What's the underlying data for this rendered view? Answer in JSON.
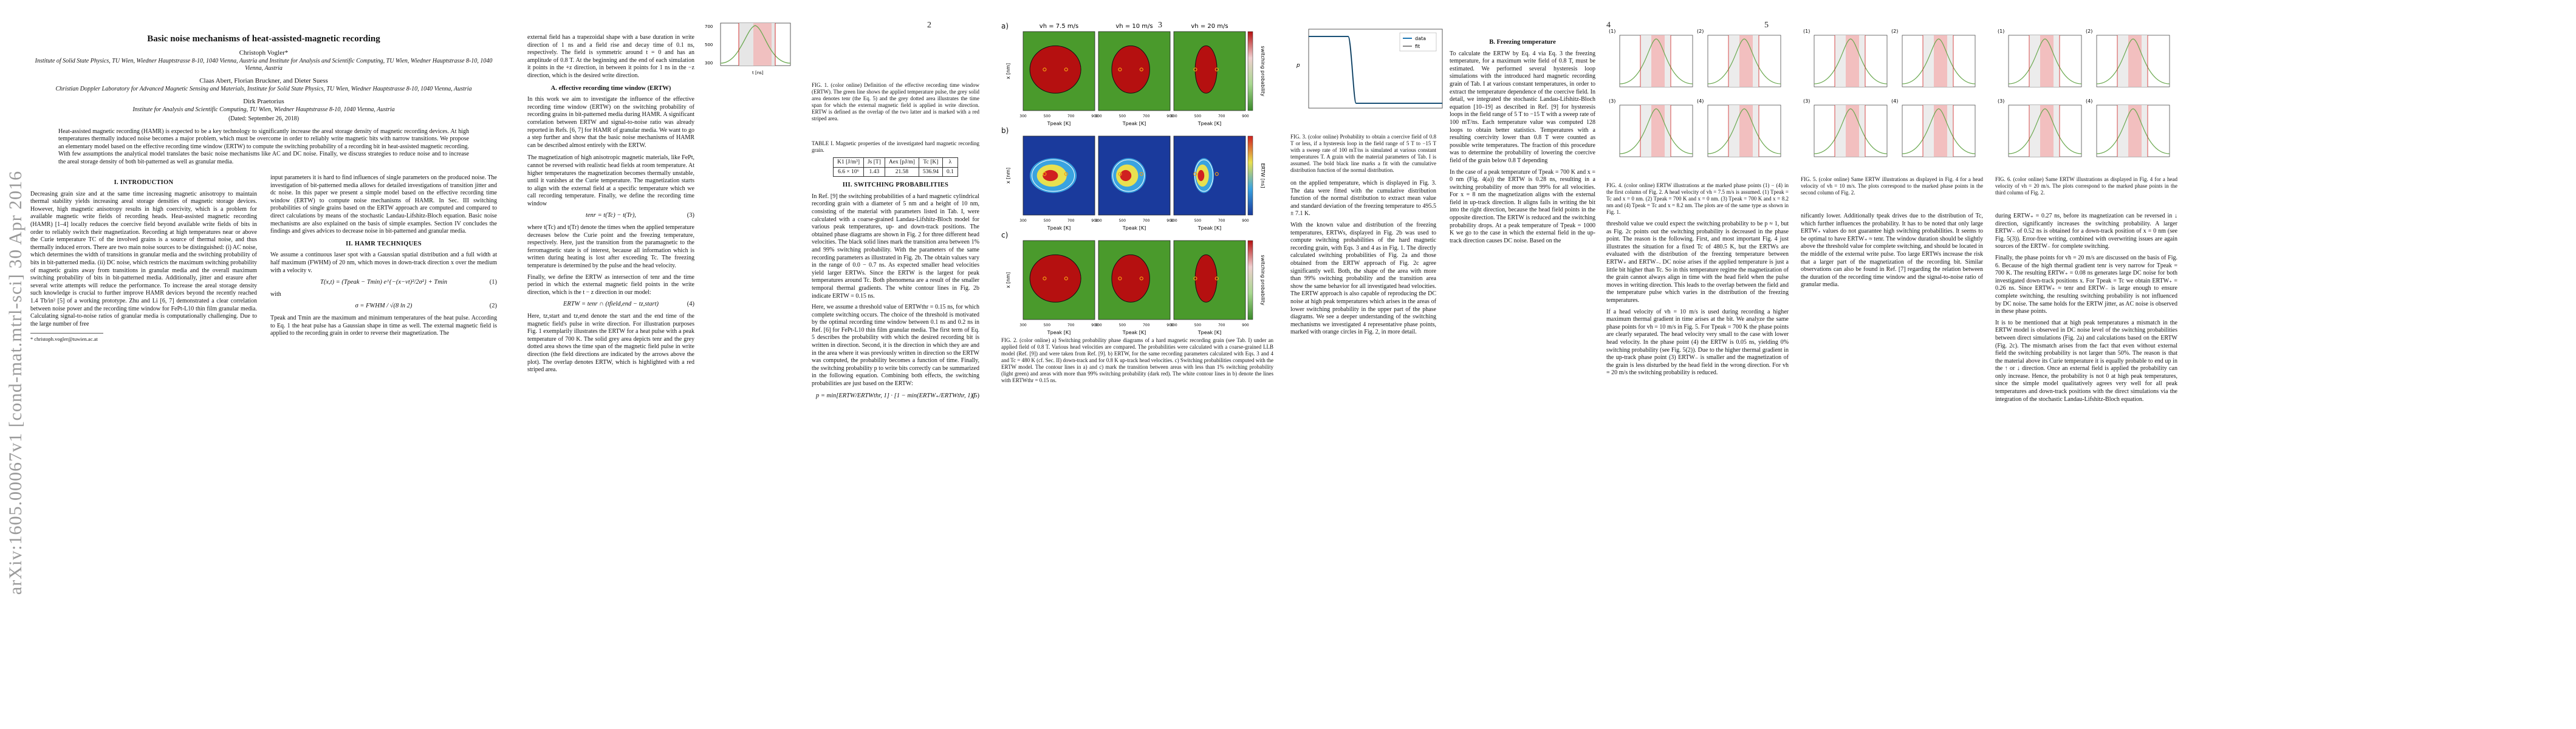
{
  "arxiv_stamp": "arXiv:1605.00067v1  [cond-mat.mtrl-sci]  30 Apr 2016",
  "page_numbers": [
    "2",
    "3",
    "4",
    "5"
  ],
  "p1": {
    "title": "Basic noise mechanisms of heat-assisted-magnetic recording",
    "author1": "Christoph Vogler*",
    "affil1": "Institute of Solid State Physics, TU Wien, Wiedner Hauptstrasse 8-10, 1040 Vienna, Austria and Institute for Analysis and Scientific Computing, TU Wien, Wiedner Hauptstrasse 8-10, 1040 Vienna, Austria",
    "author2": "Claas Abert, Florian Bruckner, and Dieter Suess",
    "affil2": "Christian Doppler Laboratory for Advanced Magnetic Sensing and Materials, Institute for Solid State Physics, TU Wien, Wiedner Hauptstrasse 8-10, 1040 Vienna, Austria",
    "author3": "Dirk Praetorius",
    "affil3": "Institute for Analysis and Scientific Computing, TU Wien, Wiedner Hauptstrasse 8-10, 1040 Vienna, Austria",
    "date": "(Dated: September 26, 2018)",
    "abstract": "Heat-assisted magnetic recording (HAMR) is expected to be a key technology to significantly increase the areal storage density of magnetic recording devices. At high temperatures thermally induced noise becomes a major problem, which must be overcome in order to reliably write magnetic bits with narrow transitions. We propose an elementary model based on the effective recording time window (ERTW) to compute the switching probability of a recording bit in heat-assisted magnetic recording. With few assumptions the analytical model translates the basic noise mechanisms like AC and DC noise. Finally, we discuss strategies to reduce noise and to increase the areal storage density of both bit-patterned as well as granular media.",
    "sec1": "I.   INTRODUCTION",
    "intro": "Decreasing grain size and at the same time increasing magnetic anisotropy to maintain thermal stability yields increasing areal storage densities of magnetic storage devices. However, high magnetic anisotropy results in high coercivity, which is a problem for available magnetic write fields of recording heads. Heat-assisted magnetic recording (HAMR) [1–4] locally reduces the coercive field beyond available write fields of bits in order to reliably switch their magnetization. Recording at high temperatures near or above the Curie temperature TC of the involved grains is a source of thermal noise, and thus thermally induced errors. There are two main noise sources to be distinguished: (i) AC noise, which determines the width of transitions in granular media and the switching probability of bits in bit-patterned media. (ii) DC noise, which restricts the maximum switching probability of magnetic grains away from transitions in granular media and the overall maximum switching probability of bits in bit-patterned media. Additionally, jitter and erasure after several write attempts will reduce the performance. To increase the areal storage density such knowledge is crucial to further improve HAMR devices beyond the recently reached 1.4 Tb/in² [5] of a working prototype. Zhu and Li [6, 7] demonstrated a clear correlation between noise power and the recording time window for FePt-L10 thin film granular media. Calculating signal-to-noise ratios of granular media is computationally challenging. Due to the large number of free",
    "col2_a": "input parameters it is hard to find influences of single parameters on the produced noise. The investigation of bit-patterned media allows for detailed investigations of transition jitter and dc noise. In this paper we present a simple model based on the effective recording time window (ERTW) to compute noise mechanisms of HAMR. In Sec. III switching probabilities of single grains based on the ERTW approach are computed and compared to direct calculations by means of the stochastic Landau-Lifshitz-Bloch equation. Basic noise mechanisms are also explained on the basis of simple examples. Section IV concludes the findings and gives advices to decrease noise in bit-patterned and granular media.",
    "sec2": "II.   HAMR TECHNIQUES",
    "col2_b": "We assume a continuous laser spot with a Gaussian spatial distribution and a full width at half maximum (FWHM) of 20 nm, which moves in down-track direction x over the medium with a velocity v.",
    "eq1": "T(x,t) = (Tpeak − Tmin) e^{−(x−vt)²/2σ²} + Tmin",
    "eq1_num": "(1)",
    "with": "with",
    "eq2": "σ = FWHM / √(8 ln 2)",
    "eq2_num": "(2)",
    "col2_c": "Tpeak and Tmin are the maximum and minimum temperatures of the heat pulse. According to Eq. 1 the heat pulse has a Gaussian shape in time as well. The external magnetic field is applied to the recording grain in order to reverse their magnetization. The",
    "footnote": "* christoph.vogler@tuwien.ac.at"
  },
  "p2": {
    "col1_a": "external field has a trapezoidal shape with a base duration in write direction of 1 ns and a field rise and decay time of 0.1 ns, respectively. The field is symmetric around t = 0 and has an amplitude of 0.8 T. At the beginning and the end of each simulation it points in the +z direction, in between it points for 1 ns in the −z direction, which is the desired write direction.",
    "fig1_caption": "FIG. 1. (color online) Definition of the effective recording time window (ERTW). The green line shows the applied temperature pulse, the grey solid area denotes tenr (the Eq. 5) and the grey dotted area illustrates the time span for which the external magnetic field is applied in write direction. ERTW is defined as the overlap of the two latter and is marked with a red striped area.",
    "subsecA": "A.   effective recording time window (ERTW)",
    "col1_b": "In this work we aim to investigate the influence of the effective recording time window (ERTW) on the switching probability of recording grains in bit-patterned media during HAMR. A significant correlation between ERTW and signal-to-noise ratio was already reported in Refs. [6, 7] for HAMR of granular media. We want to go a step further and show that the basic noise mechanisms of HAMR can be described almost entirely with the ERTW.",
    "col1_c": "The magnetization of high anisotropic magnetic materials, like FePt, cannot be reversed with realistic head fields at room temperature. At higher temperatures the magnetization becomes thermally unstable, until it vanishes at the Curie temperature. The magnetization starts to align with the external field at a specific temperature which we call recording temperature. Finally, we define the recording time window",
    "eq3": "tenr = t(Tc) − t(Tr),",
    "eq3_num": "(3)",
    "col1_d": "where t(Tc) and t(Tr) denote the times when the applied temperature decreases below the Curie point and the freezing temperature, respectively. Here, just the transition from the paramagnetic to the ferromagnetic state is of interest, because all information which is written during heating is lost after exceeding Tc. The freezing temperature is determined by the pulse and the head velocity.",
    "col1_e": "Finally, we define the ERTW as intersection of tenr and the time period in which the external magnetic field points in the write direction, which is the t − z direction in our model:",
    "eq4": "ERTW = tenr ∩ (tfield,end − tz,start)",
    "eq4_num": "(4)",
    "col1_f": "Here, tz,start and tz,end denote the start and the end time of the magnetic field's pulse in write direction. For illustration purposes Fig. 1 exemplarily illustrates the ERTW for a heat pulse with a peak temperature of 700 K. The solid grey area depicts tenr and the grey dotted area shows the time span of the magnetic field pulse in write direction (the field directions are indicated by the arrows above the plot). The overlap denotes ERTW, which is highlighted with a red striped area.",
    "fig1_ylabel": "T [K]",
    "fig1_xlabel": "t [ns]",
    "fig1_yticks": [
      "700",
      "500",
      "300"
    ],
    "table_caption": "TABLE I. Magnetic properties of the investigated hard magnetic recording grain.",
    "table_header": [
      "K1 [J/m³]",
      "Js [T]",
      "Aex [pJ/m]",
      "Tc [K]",
      "λ"
    ],
    "table_row": [
      "6.6 × 10⁶",
      "1.43",
      "21.58",
      "536.94",
      "0.1"
    ],
    "sec3": "III.   SWITCHING PROBABILITIES",
    "col2_a": "In Ref. [9] the switching probabilities of a hard magnetic cylindrical recording grain with a diameter of 5 nm and a height of 10 nm, consisting of the material with parameters listed in Tab. I, were calculated with a coarse-grained Landau-Lifshitz-Bloch model for various peak temperatures, up- and down-track positions. The obtained phase diagrams are shown in Fig. 2 for three different head velocities. The black solid lines mark the transition area between 1% and 99% switching probability. With the parameters of the same recording parameters as illustrated in Fig. 2b. The obtain values vary in the range of 0.0 − 0.7 ns. As expected smaller head velocities yield larger ERTWs. Since the ERTW is the largest for peak temperatures around Tc. Both phenomena are a result of the smaller temporal thermal gradients. The white contour lines in Fig. 2b indicate ERTW = 0.15 ns.",
    "caption_fig2": "FIG. 2. (color online) a) Switching probability phase diagrams of a hard magnetic recording grain (see Tab. I) under an applied field of 0.8 T. Various head velocities are compared. The probabilities were calculated with a coarse-grained LLB model (Ref. [9]) and were taken from Ref. [9]. b) ERTW, for the same recording parameters calculated with Eqs. 3 and 4 and Tc = 480 K (cf. Sec. II) down-track and for 0.8 K up-track head velocities. c) Switching probabilities computed with the ERTW model. The contour lines in a) and c) mark the transition between areas with less than 1% switching probability (light green) and areas with more than 99% switching probability (dark red). The white contour lines in b) denote the lines with ERTWthr = 0.15 ns.",
    "col2_b": "Here, we assume a threshold value of ERTWthr = 0.15 ns, for which complete switching occurs. The choice of the threshold is motivated by the optimal recording time window between 0.1 ns and 0.2 ns in Ref. [6] for FePt-L10 thin film granular media. The first term of Eq. 5 describes the probability with which the desired recording bit is written in direction. Second, it is the direction in which they are and in the area where it was previously written in direction so the ERTW was computed, the probability becomes a function of time. Finally, the switching probability p to write bits correctly can be summarized in the following equation. Combining both effects, the switching probabilities are just based on the ERTW:",
    "eq5": "p = min[ERTW/ERTWthr, 1] · [1 − min(ERTW₊/ERTWthr, 1)]",
    "eq5_num": "(5)",
    "row_labels": [
      "a)",
      "b)",
      "c)"
    ],
    "col_titles": [
      "vh = 7.5 m/s",
      "vh = 10 m/s",
      "vh = 20 m/s"
    ],
    "ylabel": "x [nm]",
    "xlabel": "Tpeak [K]",
    "xticks": [
      "300",
      "400",
      "500",
      "600",
      "700",
      "800",
      "900"
    ],
    "colorbar_a_label": "switching probability",
    "colorbar_b_label": "ERTW [ns]",
    "colorbar_c_label": "switching probability"
  },
  "p3": {
    "fig3_legend": [
      "data",
      "fit"
    ],
    "fig3_ylabel": "p",
    "fig3_caption": "FIG. 3. (color online) Probability to obtain a coercive field of 0.8 T or less, if a hysteresis loop in the field range of 5 T to −15 T with a sweep rate of 100 mT/ns is simulated at various constant temperatures T. A grain with the material parameters of Tab. I is assumed. The bold black line marks a fit with the cumulative distribution function of the normal distribution.",
    "col1_a": "on the applied temperature, which is displayed in Fig. 3. The data were fitted with the cumulative distribution function of the normal distribution to extract mean value and standard deviation of the freezing temperature to 495.5 ± 7.1 K.",
    "col1_b": "With the known value and distribution of the freezing temperatures, ERTWs, displayed in Fig. 2b was used to compute switching probabilities of the hard magnetic recording grain, with Eqs. 3 and 4 as in Fig. 1. The directly calculated switching probabilities of Fig. 2a and those obtained from the ERTW approach of Fig. 2c agree significantly well. Both, the shape of the area with more than 99% switching probability and the transition area show the same behavior for all investigated head velocities. The ERTW approach is also capable of reproducing the DC noise at high peak temperatures which arises in the areas of lower switching probability in the upper part of the phase diagrams. We see a deeper understanding of the switching mechanisms we investigated 4 representative phase points, marked with orange circles in Fig. 2, in more detail.",
    "subsecB": "B.   Freezing temperature",
    "col2_a": "To calculate the ERTW by Eq. 4 via Eq. 3 the freezing temperature, for a maximum write field of 0.8 T, must be estimated. We performed several hysteresis loop simulations with the introduced hard magnetic recording grain of Tab. I at various constant temperatures, in order to extract the temperature dependence of the coercive field. In detail, we integrated the stochastic Landau-Lifshitz-Bloch equation [10–19] as described in Ref. [9] for hysteresis loops in the field range of 5 T to −15 T with a sweep rate of 100 mT/ns. Each temperature value was computed 128 loops to obtain better statistics. Temperatures with a resulting coercivity lower than 0.8 T were counted as possible write temperatures. The fraction of this procedure was to determine the probability of lowering the coercive field of the grain below 0.8 T depending",
    "col2_b": "In the case of a peak temperature of Tpeak = 700 K and x = 0 nm (Fig. 4(a)) the ERTW is 0.28 ns, resulting in a switching probability of more than 99% for all velocities. For x = 8 nm the magnetization aligns with the external field in up-track direction. It aligns fails in writing the bit into the right direction, because the head field points in the opposite direction. The ERTW is reduced and the switching probability drops. At a peak temperature of Tpeak = 1000 K we go to the case in which the external field in the up-track direction causes DC noise. Based on the"
  },
  "p4": {
    "fig4_caption": "FIG. 4. (color online) ERTW illustrations at the marked phase points (1) − (4) in the first column of Fig. 2. A head velocity of vh = 7.5 m/s is assumed. (1) Tpeak = Tc and x = 0 nm. (2) Tpeak = 700 K and x = 0 nm. (3) Tpeak = 700 K and x = 8.2 nm and (4) Tpeak = Tc and x = 8.2 nm. The plots are of the same type as shown in Fig. 1.",
    "fig5_caption": "FIG. 5. (color online) Same ERTW illustrations as displayed in Fig. 4 for a head velocity of vh = 10 m/s. The plots correspond to the marked phase points in the second column of Fig. 2.",
    "fig6_caption": "FIG. 6. (color online) Same ERTW illustrations as displayed in Fig. 4 for a head velocity of vh = 20 m/s. The plots correspond to the marked phase points in the third column of Fig. 2.",
    "panel_labels": [
      "(1)",
      "(2)",
      "(3)",
      "(4)"
    ],
    "col1_a": "threshold value we could expect the switching probability to be p ≈ 1, but as Fig. 2c points out the switching probability is decreased in the phase point. The reason is the following. First, and most important Fig. 4 just illustrates the situation for a fixed Tc of 480.5 K, but the ERTWs are evaluated with the distribution of the freezing temperature between ERTW₊ and ERTW₋. DC noise arises if the applied temperature is just a little bit higher than Tc. So in this temperature regime the magnetization of the grain cannot always align in time with the head field when the pulse moves in writing direction. This leads to the overlap between the field and the temperature pulse which varies in the distribution of the freezing temperatures.",
    "col1_b": "If a head velocity of vh = 10 m/s is used during recording a higher maximum thermal gradient in time arises at the bit. We analyze the same phase points for vh = 10 m/s in Fig. 5. For Tpeak = 700 K the phase points are clearly separated. The head velocity very small to the case with lower head velocity. In the phase point (4) the ERTW is 0.05 ns, yielding 0% switching probability (see Fig. 5(2)). Due to the higher thermal gradient in the up-track phase point (3) ERTW₋ is smaller and the magnetization of the grain is less disturbed by the head field in the wrong direction. For vh = 20 m/s the switching probability is reduced.",
    "col2_a": "nificantly lower. Additionally tpeak drives due to the distribution of Tc, which further influences the probability. It has to be noted that only large ERTW₊ values do not guarantee high switching probabilities. It seems to be optimal to have ERTW₊ ≈ tenr. The window duration should be slightly above the threshold value for complete switching, and should be located in the middle of the external write pulse. Too large ERTWs increase the risk that a larger part of the magnetization of the recording bit. Similar observations can also be found in Ref. [7] regarding the relation between the duration of the recording time window and the signal-to-noise ratio of granular media."
  },
  "p5": {
    "col1_a": "during ERTW₊ = 0.27 ns, before its magnetization can be reversed in ↓ direction, significantly increases the switching probability. A larger ERTW₋ of 0.52 ns is obtained for a down-track position of x = 0 nm (see Fig. 5(3)). Error-free writing, combined with overwriting issues are again sources of the ERTW₋ for complete switching.",
    "col1_b": "Finally, the phase points for vh = 20 m/s are discussed on the basis of Fig. 6. Because of the high thermal gradient tenr is very narrow for Tpeak = 700 K. The resulting ERTW₊ = 0.08 ns generates large DC noise for both investigated down-track positions x. For Tpeak = Tc we obtain ERTW₊ = 0.26 ns. Since ERTW₊ ≈ tenr and ERTW₋ is large enough to ensure complete switching, the resulting switching probability is not influenced by DC noise. The same holds for the ERTW jitter, as AC noise is observed in these phase points.",
    "col1_c": "It is to be mentioned that at high peak temperatures a mismatch in the ERTW model is observed in DC noise level of the switching probabilities between direct simulations (Fig. 2a) and calculations based on the ERTW (Fig. 2c). The mismatch arises from the fact that even without external field the switching probability is not larger than 50%. The reason is that the material above its Curie temperature it is equally probable to end up in the ↑ or ↓ direction. Once an external field is applied the probability can only increase. Hence, the probability is not 0 at high peak temperatures, since the simple model qualitatively agrees very well for all peak temperatures and down-track positions with the direct simulations via the integration of the stochastic Landau-Lifshitz-Bloch equation."
  }
}
